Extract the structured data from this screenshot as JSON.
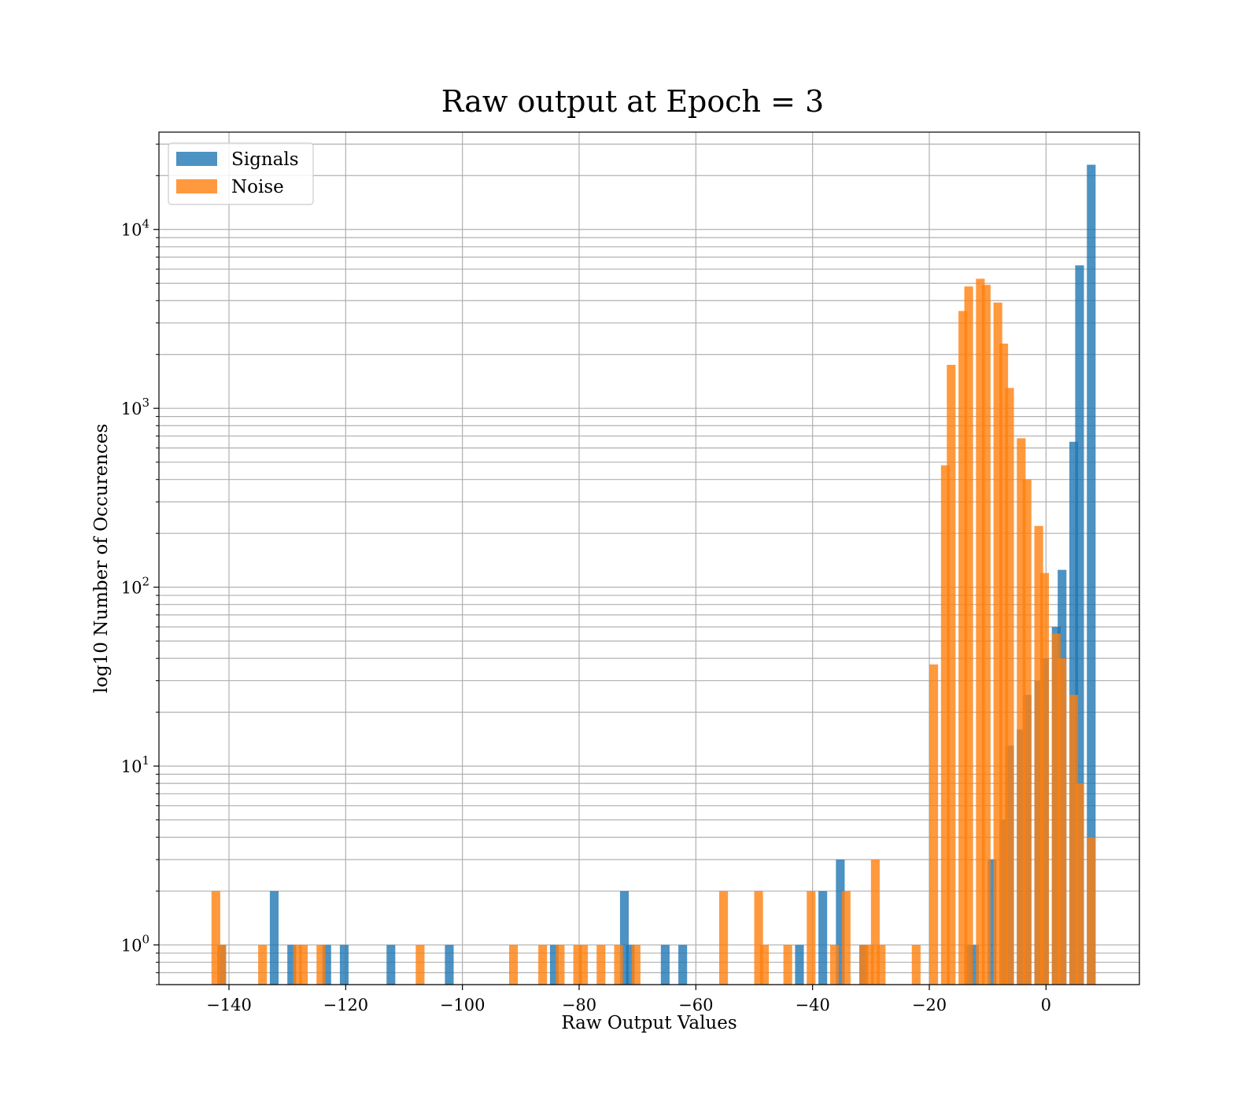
{
  "chart_data": {
    "type": "bar",
    "title": "Raw output at Epoch = 3",
    "xlabel": "Raw Output Values",
    "ylabel": "log10 Number of Occurences",
    "yscale": "log",
    "xlim": [
      -152,
      16
    ],
    "ylim": [
      0.6,
      35000
    ],
    "x_ticks": [
      -140,
      -120,
      -100,
      -80,
      -60,
      -40,
      -20,
      0
    ],
    "x_tick_labels": [
      "−140",
      "−120",
      "−100",
      "−80",
      "−60",
      "−40",
      "−20",
      "0"
    ],
    "y_ticks": [
      1,
      10,
      100,
      1000,
      10000
    ],
    "y_tick_labels": [
      {
        "base": "10",
        "exp": "0"
      },
      {
        "base": "10",
        "exp": "1"
      },
      {
        "base": "10",
        "exp": "2"
      },
      {
        "base": "10",
        "exp": "3"
      },
      {
        "base": "10",
        "exp": "4"
      }
    ],
    "grid": true,
    "legend_position": "top-left",
    "bin_width": 1.5,
    "series": [
      {
        "name": "Signals",
        "color": "#1f77b4",
        "opacity": 0.8,
        "bins": [
          [
            -142,
            1
          ],
          [
            -133,
            2
          ],
          [
            -130,
            1
          ],
          [
            -124,
            1
          ],
          [
            -121,
            1
          ],
          [
            -113,
            1
          ],
          [
            -103,
            1
          ],
          [
            -85,
            1
          ],
          [
            -73,
            2
          ],
          [
            -72,
            1
          ],
          [
            -66,
            1
          ],
          [
            -63,
            1
          ],
          [
            -43,
            1
          ],
          [
            -39,
            2
          ],
          [
            -36,
            3
          ],
          [
            -32,
            1
          ],
          [
            -14,
            1
          ],
          [
            -13,
            1
          ],
          [
            -10,
            3
          ],
          [
            -8,
            5
          ],
          [
            -7,
            13
          ],
          [
            -5,
            16
          ],
          [
            -4,
            25
          ],
          [
            -2,
            30
          ],
          [
            -1,
            40
          ],
          [
            1,
            60
          ],
          [
            2,
            125
          ],
          [
            4,
            650
          ],
          [
            5,
            6300
          ],
          [
            7,
            23000
          ]
        ]
      },
      {
        "name": "Noise",
        "color": "#ff7f0e",
        "opacity": 0.8,
        "bins": [
          [
            -143,
            2
          ],
          [
            -142,
            1
          ],
          [
            -135,
            1
          ],
          [
            -129,
            1
          ],
          [
            -128,
            1
          ],
          [
            -125,
            1
          ],
          [
            -108,
            1
          ],
          [
            -92,
            1
          ],
          [
            -87,
            1
          ],
          [
            -84,
            1
          ],
          [
            -81,
            1
          ],
          [
            -80,
            1
          ],
          [
            -77,
            1
          ],
          [
            -74,
            1
          ],
          [
            -71,
            1
          ],
          [
            -56,
            2
          ],
          [
            -50,
            2
          ],
          [
            -49,
            1
          ],
          [
            -45,
            1
          ],
          [
            -41,
            2
          ],
          [
            -37,
            1
          ],
          [
            -35,
            2
          ],
          [
            -32,
            1
          ],
          [
            -31,
            1
          ],
          [
            -30,
            3
          ],
          [
            -29,
            1
          ],
          [
            -23,
            1
          ],
          [
            -20,
            37
          ],
          [
            -18,
            480
          ],
          [
            -17,
            1750
          ],
          [
            -15,
            3500
          ],
          [
            -14,
            4800
          ],
          [
            -12,
            5300
          ],
          [
            -11,
            4900
          ],
          [
            -9,
            3900
          ],
          [
            -8,
            2300
          ],
          [
            -7,
            1300
          ],
          [
            -5,
            680
          ],
          [
            -4,
            400
          ],
          [
            -2,
            220
          ],
          [
            -1,
            120
          ],
          [
            1,
            55
          ],
          [
            2,
            40
          ],
          [
            4,
            25
          ],
          [
            5,
            8
          ],
          [
            7,
            4
          ]
        ]
      }
    ]
  }
}
